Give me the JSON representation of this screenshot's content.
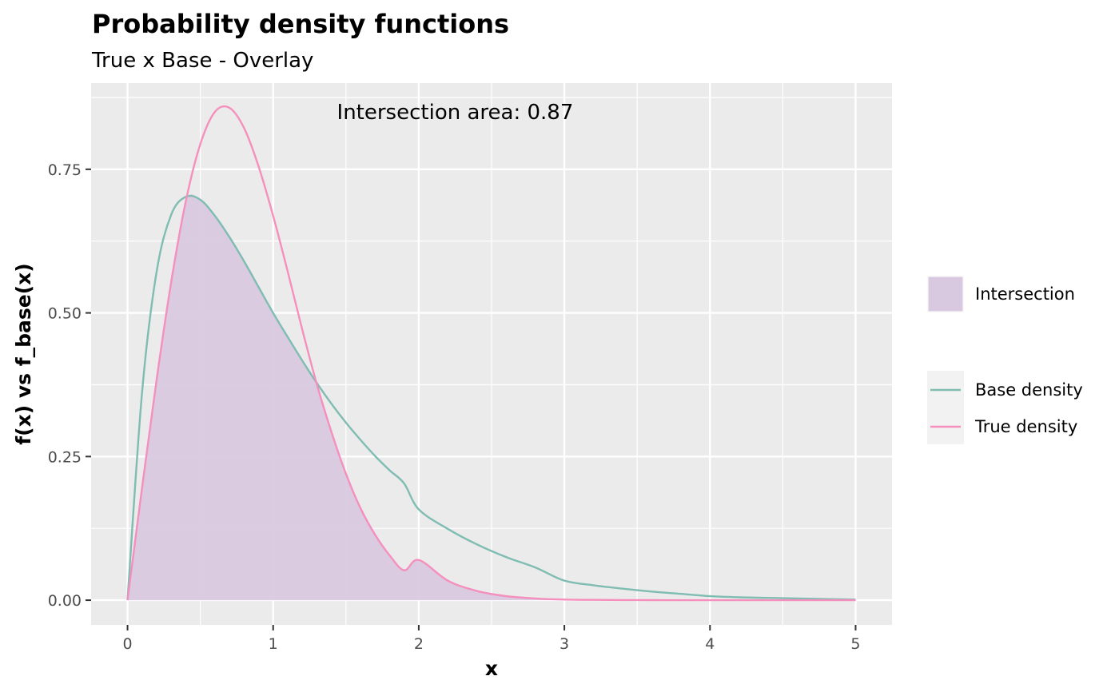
{
  "chart_data": {
    "type": "line",
    "title": "Probability density functions",
    "subtitle": "True x Base - Overlay",
    "xlabel": "x",
    "ylabel": "f(x) vs f_base(x)",
    "xlim": [
      -0.25,
      5.25
    ],
    "ylim": [
      -0.043,
      0.9
    ],
    "x_ticks": [
      0,
      1,
      2,
      3,
      4,
      5
    ],
    "x_tick_labels": [
      "0",
      "1",
      "2",
      "3",
      "4",
      "5"
    ],
    "y_ticks": [
      0.0,
      0.25,
      0.5,
      0.75
    ],
    "y_tick_labels": [
      "0.00",
      "0.25",
      "0.50",
      "0.75"
    ],
    "grid": true,
    "annotation": {
      "text": "Intersection area:  0.87",
      "x": 2.25,
      "y": 0.85
    },
    "x": [
      0,
      0.1,
      0.2,
      0.3,
      0.4,
      0.5,
      0.6,
      0.7,
      0.8,
      0.9,
      1.0,
      1.1,
      1.2,
      1.3,
      1.4,
      1.5,
      1.6,
      1.7,
      1.8,
      1.9,
      2.0,
      2.2,
      2.4,
      2.6,
      2.8,
      3.0,
      3.2,
      3.4,
      3.6,
      3.8,
      4.0,
      4.2,
      4.4,
      4.6,
      4.8,
      5.0
    ],
    "series": [
      {
        "name": "Base density",
        "color": "#7fbcb2",
        "values": [
          0.0,
          0.362,
          0.572,
          0.671,
          0.702,
          0.697,
          0.669,
          0.632,
          0.59,
          0.545,
          0.5,
          0.458,
          0.417,
          0.378,
          0.342,
          0.309,
          0.279,
          0.251,
          0.226,
          0.203,
          0.158,
          0.124,
          0.097,
          0.075,
          0.057,
          0.034,
          0.026,
          0.02,
          0.015,
          0.011,
          0.007,
          0.005,
          0.004,
          0.003,
          0.002,
          0.001
        ]
      },
      {
        "name": "True density",
        "color": "#f58fbd",
        "values": [
          0.0,
          0.196,
          0.384,
          0.554,
          0.694,
          0.794,
          0.85,
          0.857,
          0.822,
          0.755,
          0.669,
          0.572,
          0.471,
          0.376,
          0.293,
          0.22,
          0.16,
          0.114,
          0.078,
          0.052,
          0.07,
          0.034,
          0.016,
          0.007,
          0.003,
          0.001,
          0.0005,
          0.0002,
          0.0001,
          0.0,
          0.0,
          0.0,
          0.0,
          0.0,
          0.0,
          0.0
        ]
      }
    ],
    "fill": {
      "name": "Intersection",
      "color": "#d9c9e0"
    },
    "legend": {
      "position": "right",
      "fill_label": "Intersection",
      "line_labels": [
        "Base density",
        "True density"
      ]
    }
  }
}
